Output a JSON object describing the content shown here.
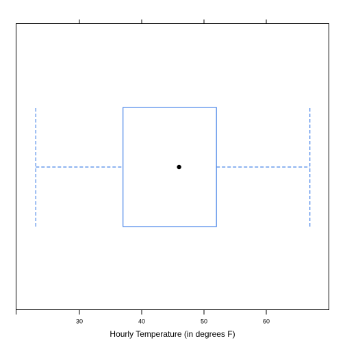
{
  "chart_data": {
    "type": "box",
    "xlabel": "Hourly Temperature (in degrees F)",
    "xlim": [
      20,
      70
    ],
    "ticks": [
      30,
      40,
      50,
      60
    ],
    "box": {
      "min": 23,
      "q1": 37,
      "median": 46,
      "q3": 52,
      "max": 67
    },
    "colors": {
      "box": "#4a86e8",
      "median_dot": "#000000"
    }
  }
}
